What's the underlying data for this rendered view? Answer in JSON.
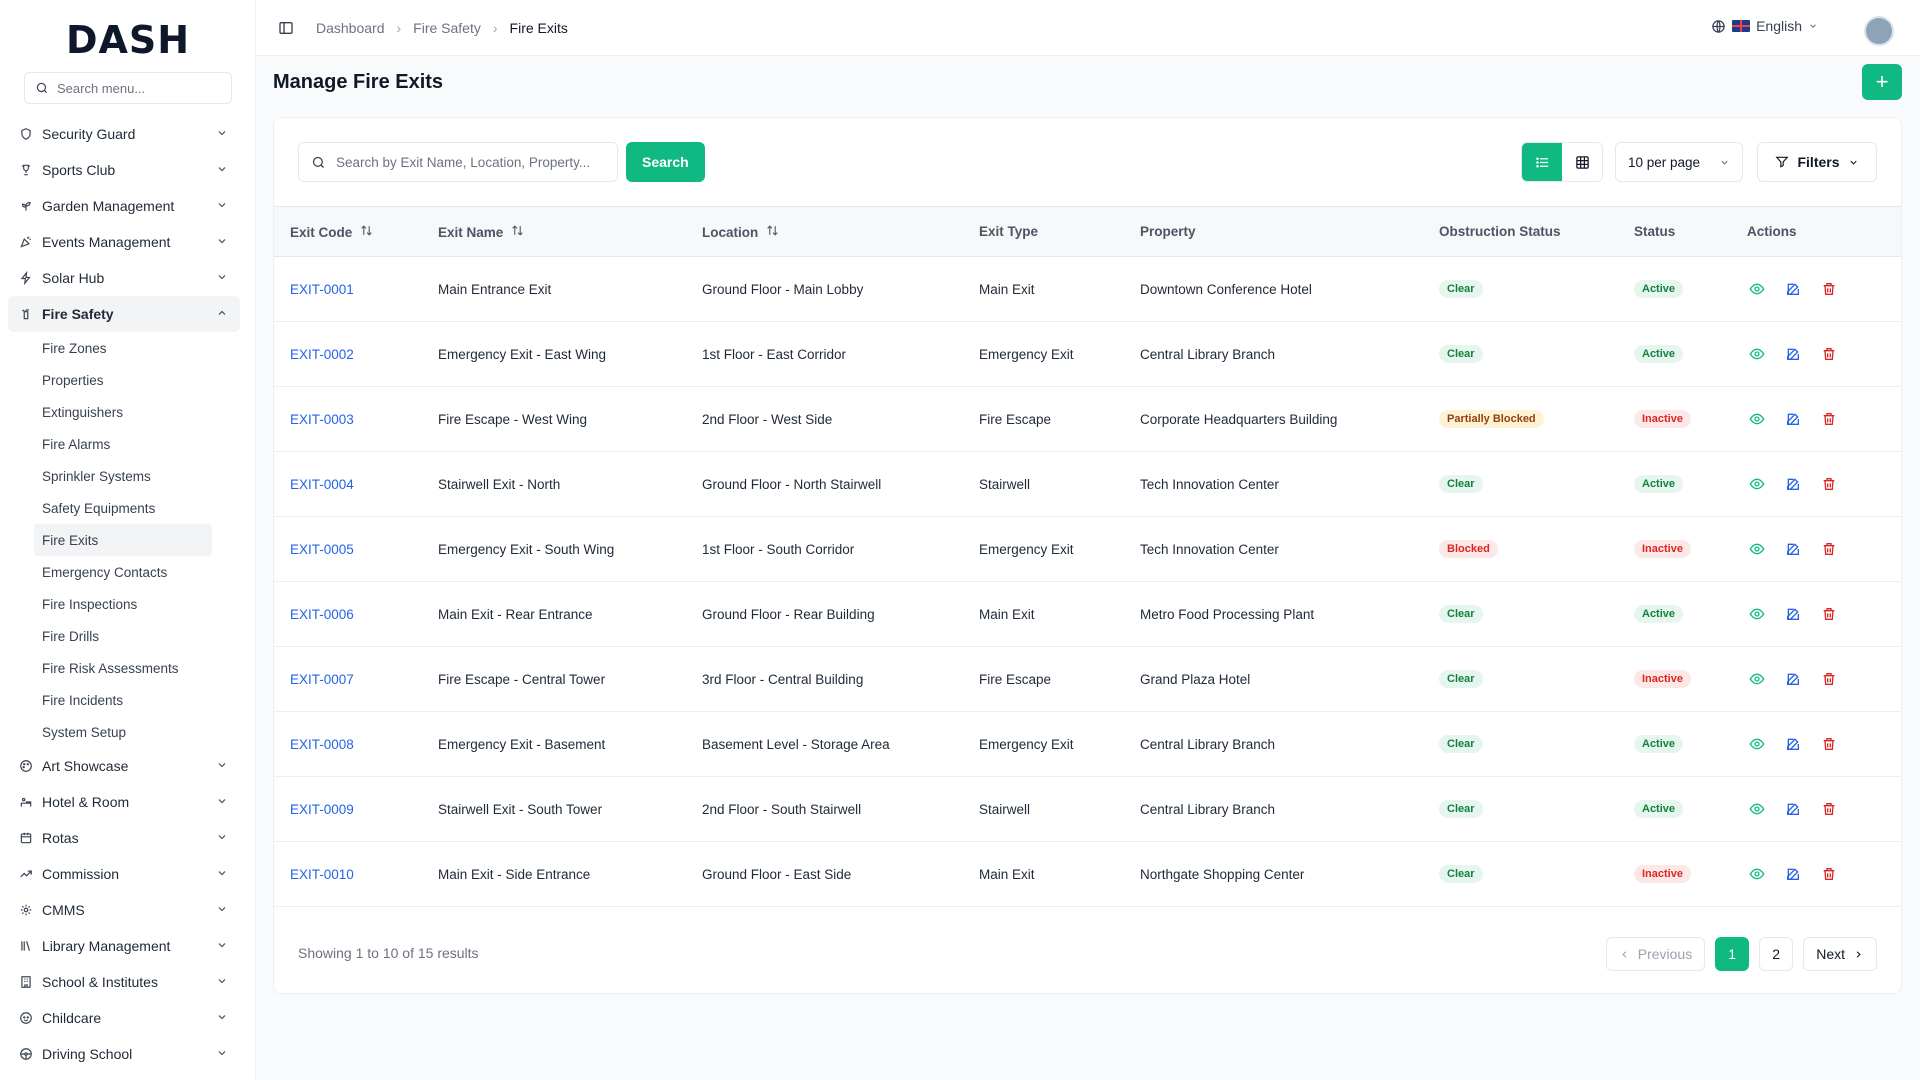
{
  "app": {
    "logo": "DASH"
  },
  "sidebar": {
    "search_placeholder": "Search menu...",
    "items": [
      {
        "label": "Security Guard",
        "icon": "shield-icon"
      },
      {
        "label": "Sports Club",
        "icon": "trophy-icon"
      },
      {
        "label": "Garden Management",
        "icon": "sprout-icon"
      },
      {
        "label": "Events Management",
        "icon": "party-icon"
      },
      {
        "label": "Solar Hub",
        "icon": "bolt-icon"
      },
      {
        "label": "Fire Safety",
        "icon": "fire-extinguisher-icon",
        "expanded": true
      }
    ],
    "fire_safety_sub": [
      "Fire Zones",
      "Properties",
      "Extinguishers",
      "Fire Alarms",
      "Sprinkler Systems",
      "Safety Equipments",
      "Fire Exits",
      "Emergency Contacts",
      "Fire Inspections",
      "Fire Drills",
      "Fire Risk Assessments",
      "Fire Incidents",
      "System Setup"
    ],
    "active_sub": "Fire Exits",
    "items_after": [
      {
        "label": "Art Showcase",
        "icon": "palette-icon"
      },
      {
        "label": "Hotel & Room",
        "icon": "hotel-icon"
      },
      {
        "label": "Rotas",
        "icon": "calendar-icon"
      },
      {
        "label": "Commission",
        "icon": "trending-up-icon"
      },
      {
        "label": "CMMS",
        "icon": "gear-icon"
      },
      {
        "label": "Library Management",
        "icon": "library-icon"
      },
      {
        "label": "School & Institutes",
        "icon": "building-icon"
      },
      {
        "label": "Childcare",
        "icon": "baby-icon"
      },
      {
        "label": "Driving School",
        "icon": "steering-wheel-icon"
      }
    ]
  },
  "header": {
    "breadcrumbs": [
      "Dashboard",
      "Fire Safety",
      "Fire Exits"
    ],
    "language": "English"
  },
  "page": {
    "title": "Manage Fire Exits",
    "search_placeholder": "Search by Exit Name, Location, Property...",
    "search_button": "Search",
    "per_page": "10 per page",
    "filters_label": "Filters"
  },
  "table": {
    "columns": [
      "Exit Code",
      "Exit Name",
      "Location",
      "Exit Type",
      "Property",
      "Obstruction Status",
      "Status",
      "Actions"
    ],
    "rows": [
      {
        "code": "EXIT-0001",
        "name": "Main Entrance Exit",
        "location": "Ground Floor - Main Lobby",
        "type": "Main Exit",
        "property": "Downtown Conference Hotel",
        "obstruction": "Clear",
        "status": "Active"
      },
      {
        "code": "EXIT-0002",
        "name": "Emergency Exit - East Wing",
        "location": "1st Floor - East Corridor",
        "type": "Emergency Exit",
        "property": "Central Library Branch",
        "obstruction": "Clear",
        "status": "Active"
      },
      {
        "code": "EXIT-0003",
        "name": "Fire Escape - West Wing",
        "location": "2nd Floor - West Side",
        "type": "Fire Escape",
        "property": "Corporate Headquarters Building",
        "obstruction": "Partially Blocked",
        "status": "Inactive"
      },
      {
        "code": "EXIT-0004",
        "name": "Stairwell Exit - North",
        "location": "Ground Floor - North Stairwell",
        "type": "Stairwell",
        "property": "Tech Innovation Center",
        "obstruction": "Clear",
        "status": "Active"
      },
      {
        "code": "EXIT-0005",
        "name": "Emergency Exit - South Wing",
        "location": "1st Floor - South Corridor",
        "type": "Emergency Exit",
        "property": "Tech Innovation Center",
        "obstruction": "Blocked",
        "status": "Inactive"
      },
      {
        "code": "EXIT-0006",
        "name": "Main Exit - Rear Entrance",
        "location": "Ground Floor - Rear Building",
        "type": "Main Exit",
        "property": "Metro Food Processing Plant",
        "obstruction": "Clear",
        "status": "Active"
      },
      {
        "code": "EXIT-0007",
        "name": "Fire Escape - Central Tower",
        "location": "3rd Floor - Central Building",
        "type": "Fire Escape",
        "property": "Grand Plaza Hotel",
        "obstruction": "Clear",
        "status": "Inactive"
      },
      {
        "code": "EXIT-0008",
        "name": "Emergency Exit - Basement",
        "location": "Basement Level - Storage Area",
        "type": "Emergency Exit",
        "property": "Central Library Branch",
        "obstruction": "Clear",
        "status": "Active"
      },
      {
        "code": "EXIT-0009",
        "name": "Stairwell Exit - South Tower",
        "location": "2nd Floor - South Stairwell",
        "type": "Stairwell",
        "property": "Central Library Branch",
        "obstruction": "Clear",
        "status": "Active"
      },
      {
        "code": "EXIT-0010",
        "name": "Main Exit - Side Entrance",
        "location": "Ground Floor - East Side",
        "type": "Main Exit",
        "property": "Northgate Shopping Center",
        "obstruction": "Clear",
        "status": "Inactive"
      }
    ]
  },
  "pagination": {
    "showing": "Showing 1 to 10 of 15 results",
    "previous": "Previous",
    "pages": [
      "1",
      "2"
    ],
    "current": "1",
    "next": "Next"
  },
  "colors": {
    "accent": "#10b981",
    "link": "#2563eb",
    "danger": "#dc2626"
  }
}
